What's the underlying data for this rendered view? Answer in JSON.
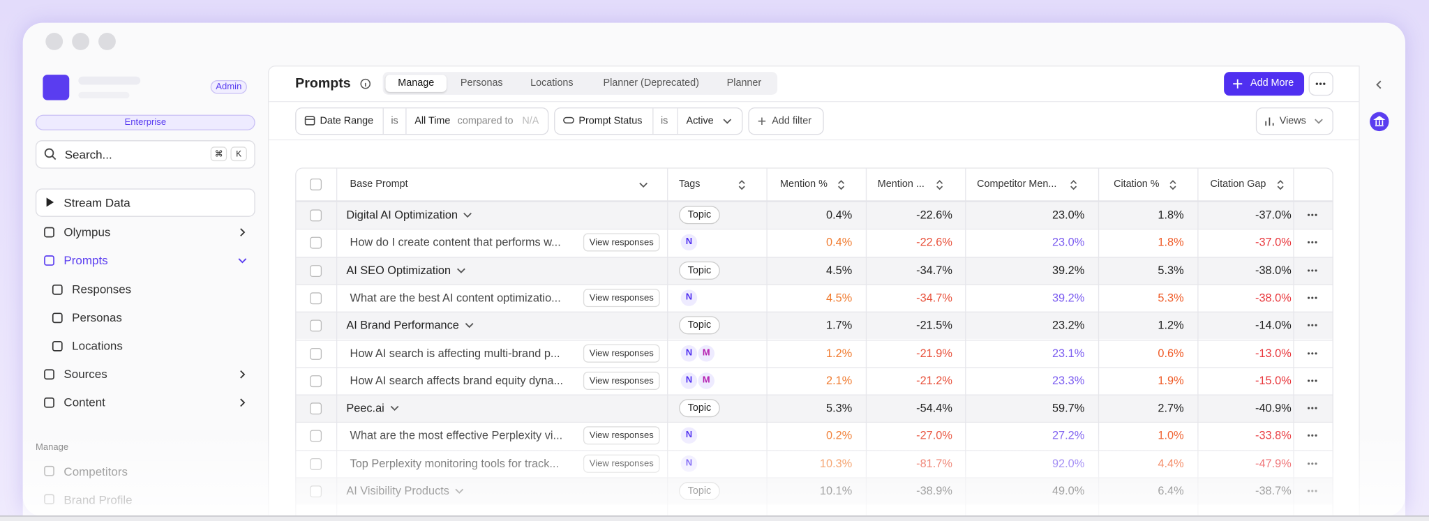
{
  "sidebar": {
    "admin_badge": "Admin",
    "plan": "Enterprise",
    "search_placeholder": "Search...",
    "search_keys": [
      "⌘",
      "K"
    ],
    "stream": "Stream Data",
    "nav": [
      "Olympus",
      "Prompts",
      "Responses",
      "Personas",
      "Locations",
      "Sources",
      "Content"
    ],
    "section": "Manage",
    "manage_items": [
      "Competitors",
      "Brand Profile"
    ]
  },
  "header": {
    "title": "Prompts",
    "tabs": [
      "Manage",
      "Personas",
      "Locations",
      "Planner (Deprecated)",
      "Planner"
    ],
    "add_button": "Add More"
  },
  "filters": {
    "date_label": "Date Range",
    "date_op": "is",
    "date_value": "All Time",
    "compare_label": "compared to",
    "compare_value": "N/A",
    "status_label": "Prompt Status",
    "status_op": "is",
    "status_value": "Active",
    "add_filter": "Add filter",
    "views": "Views"
  },
  "table": {
    "headers": [
      "Base Prompt",
      "Tags",
      "Mention %",
      "Mention ...",
      "Competitor Men...",
      "Citation %",
      "Citation Gap"
    ],
    "rows": [
      {
        "name": "Digital AI Optimization",
        "tags": [
          "Topic"
        ],
        "values": [
          "0.4%",
          "-22.6%",
          "23.0%",
          "1.8%",
          "-37.0%"
        ]
      },
      {
        "name": "How do I create content that performs w...",
        "action": "View responses",
        "tags": [
          "N"
        ],
        "values": [
          "0.4%",
          "-22.6%",
          "23.0%",
          "1.8%",
          "-37.0%"
        ]
      },
      {
        "name": "AI SEO Optimization",
        "tags": [
          "Topic"
        ],
        "values": [
          "4.5%",
          "-34.7%",
          "39.2%",
          "5.3%",
          "-38.0%"
        ]
      },
      {
        "name": "What are the best AI content optimizatio...",
        "action": "View responses",
        "tags": [
          "N"
        ],
        "values": [
          "4.5%",
          "-34.7%",
          "39.2%",
          "5.3%",
          "-38.0%"
        ]
      },
      {
        "name": "AI Brand Performance",
        "tags": [
          "Topic"
        ],
        "values": [
          "1.7%",
          "-21.5%",
          "23.2%",
          "1.2%",
          "-14.0%"
        ]
      },
      {
        "name": "How AI search is affecting multi-brand p...",
        "action": "View responses",
        "tags": [
          "N",
          "M"
        ],
        "values": [
          "1.2%",
          "-21.9%",
          "23.1%",
          "0.6%",
          "-13.0%"
        ]
      },
      {
        "name": "How AI search affects brand equity dyna...",
        "action": "View responses",
        "tags": [
          "N",
          "M"
        ],
        "values": [
          "2.1%",
          "-21.2%",
          "23.3%",
          "1.9%",
          "-15.0%"
        ]
      },
      {
        "name": "Peec.ai",
        "tags": [
          "Topic"
        ],
        "values": [
          "5.3%",
          "-54.4%",
          "59.7%",
          "2.7%",
          "-40.9%"
        ]
      },
      {
        "name": "What are the most effective Perplexity vi...",
        "action": "View responses",
        "tags": [
          "N"
        ],
        "values": [
          "0.2%",
          "-27.0%",
          "27.2%",
          "1.0%",
          "-33.8%"
        ]
      },
      {
        "name": "Top Perplexity monitoring tools for track...",
        "action": "View responses",
        "tags": [
          "N"
        ],
        "values": [
          "10.3%",
          "-81.7%",
          "92.0%",
          "4.4%",
          "-47.9%"
        ]
      },
      {
        "name": "AI Visibility Products",
        "tags": [
          "Topic"
        ],
        "values": [
          "10.1%",
          "-38.9%",
          "49.0%",
          "6.4%",
          "-38.7%"
        ]
      }
    ]
  }
}
